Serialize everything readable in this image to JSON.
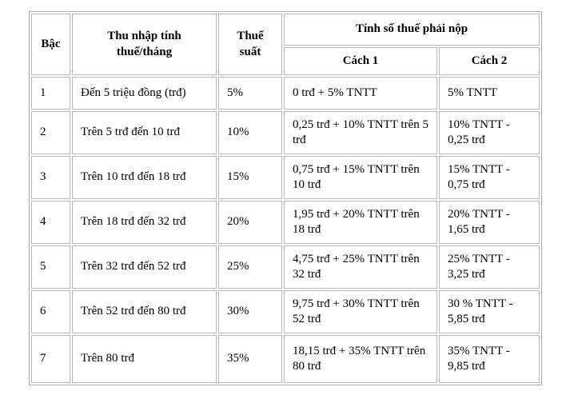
{
  "page": {
    "background_color": "#ffffff",
    "border_color": "#b6b6b6",
    "text_color": "#000000"
  },
  "table": {
    "header": {
      "level": "Bậc",
      "income": "Thu nhập tính thuế/tháng",
      "rate": "Thuế suất",
      "tax_group": "Tính số thuế phải nộp",
      "method1": "Cách 1",
      "method2": "Cách 2"
    },
    "rows": [
      {
        "level": "1",
        "income": "Đến 5 triệu đồng (trđ)",
        "rate": "5%",
        "method1": "0 trđ + 5% TNTT",
        "method2": "5% TNTT"
      },
      {
        "level": "2",
        "income": "Trên 5 trđ đến 10 trđ",
        "rate": "10%",
        "method1": "0,25 trđ + 10% TNTT trên 5 trđ",
        "method2": "10% TNTT - 0,25 trđ"
      },
      {
        "level": "3",
        "income": "Trên 10 trđ đến 18 trđ",
        "rate": "15%",
        "method1": "0,75 trđ + 15% TNTT trên 10 trđ",
        "method2": "15% TNTT - 0,75 trđ"
      },
      {
        "level": "4",
        "income": "Trên 18 trđ đến 32 trđ",
        "rate": "20%",
        "method1": "1,95 trđ + 20% TNTT trên 18 trđ",
        "method2": "20% TNTT - 1,65 trđ"
      },
      {
        "level": "5",
        "income": "Trên 32 trđ đến 52 trđ",
        "rate": "25%",
        "method1": "4,75 trđ + 25% TNTT trên 32 trđ",
        "method2": "25% TNTT - 3,25 trđ"
      },
      {
        "level": "6",
        "income": "Trên 52 trđ đến 80 trđ",
        "rate": "30%",
        "method1": "9,75 trđ + 30% TNTT trên 52 trđ",
        "method2": "30 % TNTT - 5,85 trđ"
      },
      {
        "level": "7",
        "income": "Trên 80 trđ",
        "rate": "35%",
        "method1": "18,15 trđ + 35% TNTT trên 80 trđ",
        "method2": "35% TNTT - 9,85 trđ"
      }
    ]
  }
}
